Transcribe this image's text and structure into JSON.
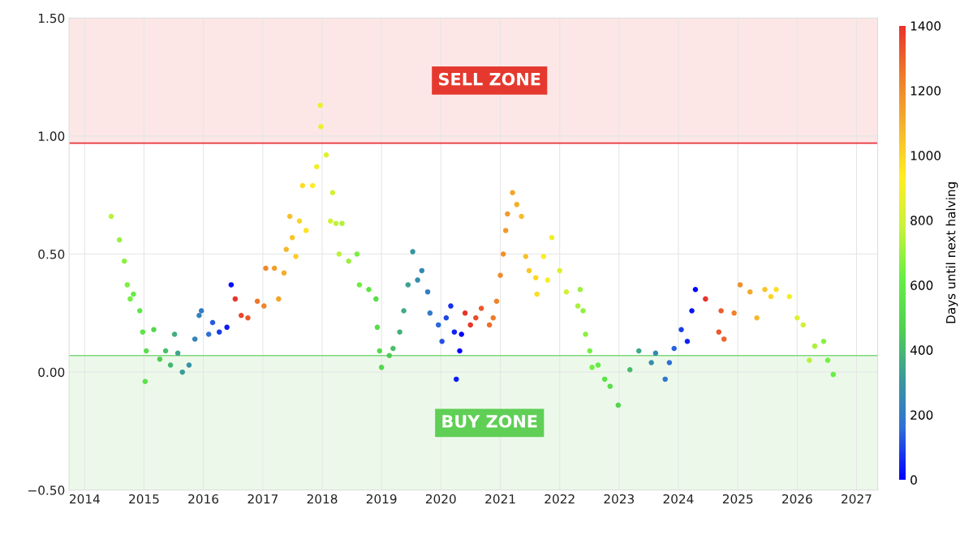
{
  "chart_data": {
    "type": "scatter",
    "clabel": "Days until next halving",
    "clim": [
      0,
      1400
    ],
    "cticks": [
      0,
      200,
      400,
      600,
      800,
      1000,
      1200,
      1400
    ],
    "marker": "circle",
    "grid": true,
    "xlim": [
      "2013-09-27",
      "2027-05-11"
    ],
    "xticks": [
      "2014",
      "2015",
      "2016",
      "2017",
      "2018",
      "2019",
      "2020",
      "2021",
      "2022",
      "2023",
      "2024",
      "2025",
      "2026",
      "2027"
    ],
    "ylim": [
      -0.5,
      1.5
    ],
    "yticks": [
      {
        "value": -0.5,
        "label": "−0.50"
      },
      {
        "value": 0,
        "label": "0.00"
      },
      {
        "value": 0.5,
        "label": "0.50"
      },
      {
        "value": 1,
        "label": "1.00"
      },
      {
        "value": 1.5,
        "label": "1.50"
      }
    ],
    "ref_lines": [
      {
        "axis": "y",
        "value": 0.97,
        "color": "#e8333a"
      },
      {
        "axis": "y",
        "value": 0.07,
        "color": "#7ed67e"
      }
    ],
    "bands": [
      {
        "axis": "y",
        "from": 0.97,
        "to": 1.5,
        "label": "SELL ZONE",
        "color": "#e5392f"
      },
      {
        "axis": "y",
        "from": -0.5,
        "to": 0.07,
        "label": "BUY ZONE",
        "color": "#5fcf55"
      }
    ],
    "x": [
      "2014-06-13",
      "2014-08-03",
      "2014-09-02",
      "2014-09-20",
      "2014-10-08",
      "2014-10-28",
      "2014-12-06",
      "2014-12-24",
      "2015-01-08",
      "2015-01-15",
      "2015-03-02",
      "2015-04-08",
      "2015-05-14",
      "2015-06-13",
      "2015-07-08",
      "2015-07-28",
      "2015-08-25",
      "2015-10-05",
      "2015-11-10",
      "2015-12-06",
      "2015-12-20",
      "2016-02-03",
      "2016-02-27",
      "2016-04-08",
      "2016-05-25",
      "2016-06-20",
      "2016-07-15",
      "2016-08-21",
      "2016-10-01",
      "2016-11-28",
      "2017-01-08",
      "2017-01-19",
      "2017-03-13",
      "2017-04-08",
      "2017-05-11",
      "2017-05-25",
      "2017-06-16",
      "2017-07-01",
      "2017-07-23",
      "2017-08-14",
      "2017-09-02",
      "2017-09-24",
      "2017-11-03",
      "2017-11-28",
      "2017-12-20",
      "2017-12-24",
      "2018-01-26",
      "2018-02-21",
      "2018-03-06",
      "2018-03-27",
      "2018-04-15",
      "2018-05-03",
      "2018-06-13",
      "2018-08-03",
      "2018-08-18",
      "2018-10-15",
      "2018-11-28",
      "2018-12-06",
      "2018-12-20",
      "2019-01-01",
      "2019-02-18",
      "2019-03-13",
      "2019-04-23",
      "2019-05-18",
      "2019-06-13",
      "2019-07-12",
      "2019-08-11",
      "2019-09-06",
      "2019-10-12",
      "2019-10-26",
      "2019-12-17",
      "2020-01-08",
      "2020-02-03",
      "2020-03-02",
      "2020-03-24",
      "2020-04-05",
      "2020-04-26",
      "2020-05-07",
      "2020-05-29",
      "2020-07-01",
      "2020-08-03",
      "2020-09-06",
      "2020-10-26",
      "2020-11-18",
      "2020-12-09",
      "2021-01-01",
      "2021-01-19",
      "2021-02-03",
      "2021-02-14",
      "2021-03-17",
      "2021-04-12",
      "2021-05-11",
      "2021-06-06",
      "2021-06-27",
      "2021-08-07",
      "2021-08-14",
      "2021-09-24",
      "2021-10-19",
      "2021-11-14",
      "2022-01-01",
      "2022-02-11",
      "2022-04-23",
      "2022-05-07",
      "2022-05-25",
      "2022-06-09",
      "2022-07-05",
      "2022-07-19",
      "2022-08-25",
      "2022-10-05",
      "2022-11-07",
      "2022-12-27",
      "2023-03-09",
      "2023-05-03",
      "2023-07-19",
      "2023-08-14",
      "2023-10-12",
      "2023-11-07",
      "2023-12-06",
      "2024-01-19",
      "2024-02-25",
      "2024-03-24",
      "2024-04-15",
      "2024-06-16",
      "2024-09-06",
      "2024-09-20",
      "2024-10-08",
      "2024-12-09",
      "2025-01-15",
      "2025-03-17",
      "2025-04-28",
      "2025-06-16",
      "2025-07-23",
      "2025-08-25",
      "2025-11-14",
      "2026-01-01",
      "2026-02-07",
      "2026-03-17",
      "2026-04-19",
      "2026-06-13",
      "2026-07-08",
      "2026-08-11"
    ],
    "values": [
      0.66,
      0.56,
      0.47,
      0.37,
      0.31,
      0.33,
      0.26,
      0.17,
      -0.04,
      0.09,
      0.18,
      0.055,
      0.09,
      0.03,
      0.16,
      0.08,
      0.0,
      0.03,
      0.14,
      0.24,
      0.26,
      0.16,
      0.21,
      0.17,
      0.19,
      0.37,
      0.31,
      0.24,
      0.23,
      0.3,
      0.28,
      0.44,
      0.44,
      0.31,
      0.42,
      0.52,
      0.66,
      0.57,
      0.49,
      0.64,
      0.79,
      0.6,
      0.79,
      0.87,
      1.13,
      1.04,
      0.92,
      0.64,
      0.76,
      0.63,
      0.5,
      0.63,
      0.47,
      0.5,
      0.37,
      0.35,
      0.31,
      0.19,
      0.09,
      0.02,
      0.07,
      0.1,
      0.17,
      0.26,
      0.37,
      0.51,
      0.39,
      0.43,
      0.34,
      0.25,
      0.2,
      0.13,
      0.23,
      0.28,
      0.17,
      -0.03,
      0.09,
      0.16,
      0.25,
      0.2,
      0.23,
      0.27,
      0.2,
      0.23,
      0.3,
      0.41,
      0.5,
      0.6,
      0.67,
      0.76,
      0.71,
      0.66,
      0.49,
      0.43,
      0.4,
      0.33,
      0.49,
      0.39,
      0.57,
      0.43,
      0.34,
      0.28,
      0.35,
      0.26,
      0.16,
      0.09,
      0.02,
      0.03,
      -0.03,
      -0.06,
      -0.14,
      0.01,
      0.09,
      0.04,
      0.08,
      -0.03,
      0.04,
      0.1,
      0.18,
      0.13,
      0.26,
      0.35,
      0.31,
      0.17,
      0.26,
      0.14,
      0.25,
      0.37,
      0.34,
      0.23,
      0.35,
      0.32,
      0.35,
      0.32,
      0.23,
      0.2,
      0.05,
      0.11,
      0.13,
      0.05,
      -0.01
    ],
    "cvalues": [
      760,
      700,
      680,
      660,
      640,
      620,
      580,
      560,
      550,
      540,
      490,
      460,
      420,
      390,
      370,
      340,
      320,
      280,
      240,
      220,
      200,
      160,
      130,
      90,
      40,
      20,
      1390,
      1360,
      1320,
      1260,
      1220,
      1210,
      1150,
      1130,
      1100,
      1080,
      1060,
      1040,
      1020,
      1000,
      980,
      960,
      920,
      890,
      870,
      870,
      840,
      810,
      800,
      770,
      760,
      740,
      700,
      650,
      630,
      570,
      530,
      520,
      510,
      500,
      450,
      420,
      380,
      360,
      330,
      300,
      270,
      250,
      210,
      200,
      150,
      120,
      100,
      70,
      50,
      40,
      10,
      0,
      1400,
      1390,
      1350,
      1320,
      1270,
      1250,
      1230,
      1200,
      1190,
      1170,
      1160,
      1130,
      1100,
      1070,
      1050,
      1030,
      990,
      980,
      940,
      910,
      890,
      840,
      800,
      730,
      710,
      690,
      680,
      650,
      640,
      600,
      560,
      530,
      480,
      410,
      350,
      270,
      250,
      190,
      160,
      140,
      90,
      50,
      30,
      0,
      1400,
      1320,
      1310,
      1290,
      1230,
      1190,
      1120,
      1080,
      1040,
      1000,
      970,
      890,
      840,
      800,
      760,
      730,
      680,
      650,
      620
    ]
  }
}
